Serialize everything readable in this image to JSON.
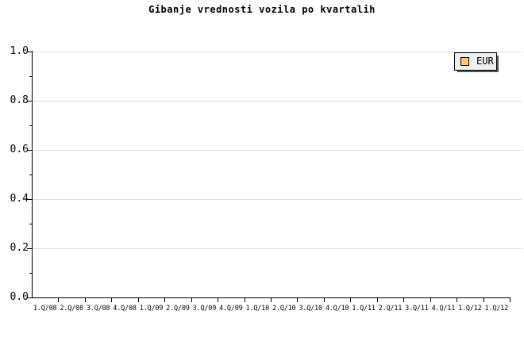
{
  "title": "Gibanje vrednosti vozila po kvartalih",
  "legend": {
    "label": "EUR",
    "swatch_color": "#ffc878",
    "position": "top-right"
  },
  "colors": {
    "background": "#ffffff",
    "axis": "#000000",
    "grid": "#dedede",
    "text": "#000000",
    "legend_bg": "#efefef",
    "legend_border": "#000000",
    "legend_shadow": "#555555",
    "swatch_border": "#000000"
  },
  "chart_data": {
    "type": "line",
    "title": "Gibanje vrednosti vozila po kvartalih",
    "x_categories": [
      "1.Q/08",
      "2.Q/08",
      "3.Q/08",
      "4.Q/08",
      "1.Q/09",
      "2.Q/09",
      "3.Q/09",
      "4.Q/09",
      "1.Q/10",
      "2.Q/10",
      "3.Q/10",
      "4.Q/10",
      "1.Q/11",
      "2.Q/11",
      "3.Q/11",
      "4.Q/11",
      "1.Q/12",
      "1.Q/12"
    ],
    "y_ticks": [
      0.0,
      0.2,
      0.4,
      0.6,
      0.8,
      1.0
    ],
    "y_minor_ticks": [
      0.1,
      0.3,
      0.5,
      0.7,
      0.9
    ],
    "ylim": [
      0.0,
      1.0
    ],
    "xlabel": "",
    "ylabel": "",
    "grid": "horizontal-major-only",
    "legend_position": "top-right",
    "series": [
      {
        "name": "EUR",
        "color": "#ffc878",
        "values": []
      }
    ]
  }
}
